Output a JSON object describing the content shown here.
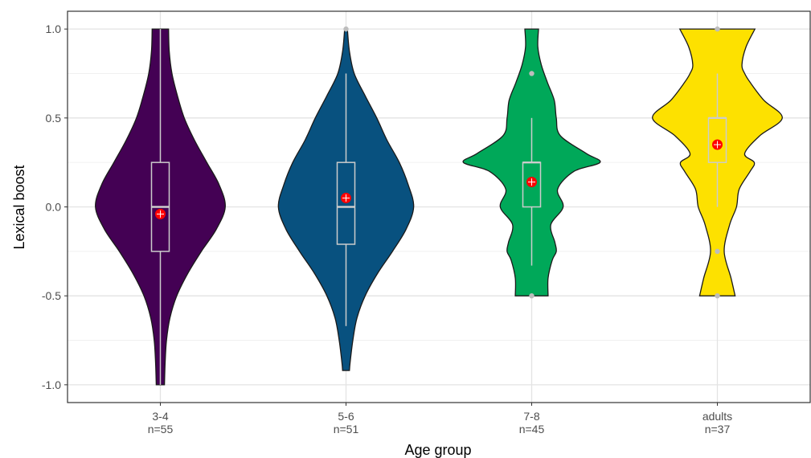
{
  "chart_data": {
    "type": "violin",
    "title": "",
    "xlabel": "Age group",
    "ylabel": "Lexical boost",
    "ylim": [
      -1.1,
      1.1
    ],
    "yticks": [
      1.0,
      0.5,
      0.0,
      -0.5,
      -1.0
    ],
    "ytick_labels": [
      "1.0",
      "0.5",
      "0.0",
      "-0.5",
      "-1.0"
    ],
    "grid": true,
    "legend": "none",
    "mean_marker_color": "#ff0000",
    "box_color": "#cccccc",
    "groups": [
      {
        "category": "3-4",
        "count_label": "n=55",
        "fill": "#440154",
        "min": -1.0,
        "max": 1.0,
        "q1": -0.25,
        "median": 0.0,
        "q3": 0.25,
        "whisker_low": -1.0,
        "whisker_high": 1.0,
        "mean": -0.04,
        "outliers": [],
        "density_y": [
          1.0,
          0.875,
          0.75,
          0.625,
          0.5,
          0.375,
          0.25,
          0.125,
          0.0,
          -0.125,
          -0.25,
          -0.375,
          -0.5,
          -0.625,
          -0.75,
          -0.875,
          -1.0
        ],
        "density_w": [
          0.12,
          0.13,
          0.17,
          0.25,
          0.35,
          0.5,
          0.68,
          0.86,
          0.95,
          0.82,
          0.6,
          0.4,
          0.24,
          0.14,
          0.09,
          0.07,
          0.06
        ]
      },
      {
        "category": "5-6",
        "count_label": "n=51",
        "fill": "#08517f",
        "min": -0.92,
        "max": 1.0,
        "q1": -0.21,
        "median": 0.0,
        "q3": 0.25,
        "whisker_low": -0.67,
        "whisker_high": 0.75,
        "mean": 0.05,
        "outliers": [
          1.0
        ],
        "density_y": [
          1.0,
          0.875,
          0.75,
          0.625,
          0.5,
          0.375,
          0.25,
          0.125,
          0.0,
          -0.125,
          -0.25,
          -0.375,
          -0.5,
          -0.625,
          -0.75,
          -0.875,
          -0.92
        ],
        "density_w": [
          0.02,
          0.05,
          0.12,
          0.28,
          0.45,
          0.6,
          0.78,
          0.91,
          0.99,
          0.88,
          0.68,
          0.46,
          0.28,
          0.16,
          0.1,
          0.06,
          0.05
        ]
      },
      {
        "category": "7-8",
        "count_label": "n=45",
        "fill": "#00a859",
        "min": -0.5,
        "max": 1.0,
        "q1": 0.0,
        "median": 0.25,
        "q3": 0.25,
        "whisker_low": -0.33,
        "whisker_high": 0.5,
        "mean": 0.14,
        "outliers": [
          0.75,
          -0.5
        ],
        "density_y": [
          1.0,
          0.9,
          0.8,
          0.7,
          0.6,
          0.5,
          0.4,
          0.3,
          0.25,
          0.2,
          0.1,
          0.0,
          -0.1,
          -0.2,
          -0.25,
          -0.3,
          -0.4,
          -0.5
        ],
        "density_w": [
          0.1,
          0.09,
          0.14,
          0.23,
          0.33,
          0.36,
          0.42,
          0.8,
          1.0,
          0.62,
          0.38,
          0.46,
          0.28,
          0.34,
          0.36,
          0.3,
          0.24,
          0.24
        ]
      },
      {
        "category": "adults",
        "count_label": "n=37",
        "fill": "#fde100",
        "min": -0.5,
        "max": 1.0,
        "q1": 0.25,
        "median": 0.5,
        "q3": 0.5,
        "whisker_low": 0.0,
        "whisker_high": 0.75,
        "mean": 0.35,
        "outliers": [
          1.0,
          -0.25,
          -0.5
        ],
        "density_y": [
          1.0,
          0.9,
          0.8,
          0.75,
          0.7,
          0.6,
          0.5,
          0.4,
          0.3,
          0.25,
          0.2,
          0.1,
          0.0,
          -0.1,
          -0.25,
          -0.4,
          -0.5
        ],
        "density_w": [
          0.55,
          0.42,
          0.36,
          0.4,
          0.48,
          0.68,
          0.95,
          0.62,
          0.4,
          0.54,
          0.48,
          0.32,
          0.28,
          0.18,
          0.1,
          0.2,
          0.26
        ]
      }
    ]
  }
}
